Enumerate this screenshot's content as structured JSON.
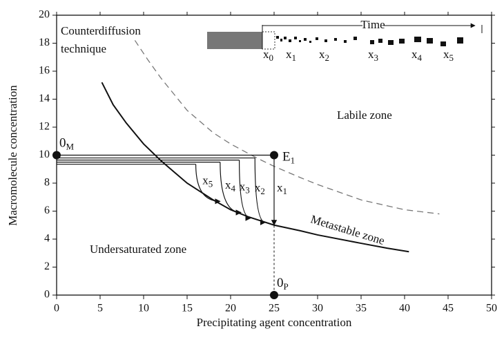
{
  "chart_data": {
    "type": "line",
    "x_label": "Precipitating agent concentration",
    "y_label": "Macromolecule concentration",
    "xlim": [
      0,
      50
    ],
    "xticks": [
      0,
      5,
      10,
      15,
      20,
      25,
      30,
      35,
      40,
      45,
      50
    ],
    "ylim": [
      0,
      20
    ],
    "yticks": [
      0,
      2,
      4,
      6,
      8,
      10,
      12,
      14,
      16,
      18,
      20
    ],
    "series": [
      {
        "style": "solid",
        "color": "#111111",
        "x": [
          5.2,
          6.5,
          8,
          10,
          12,
          15,
          18,
          20,
          22,
          25,
          28,
          30,
          35,
          38,
          40.5
        ],
        "values": [
          15.2,
          13.6,
          12.3,
          10.8,
          9.6,
          8.0,
          6.8,
          6.1,
          5.6,
          5.0,
          4.6,
          4.3,
          3.7,
          3.35,
          3.1
        ]
      },
      {
        "style": "dashed",
        "color": "#777777",
        "x": [
          9,
          10.5,
          12,
          15,
          18,
          20,
          23,
          25,
          28,
          30,
          35,
          40,
          44
        ],
        "values": [
          18.2,
          16.8,
          15.5,
          13.2,
          11.6,
          10.8,
          9.8,
          9.2,
          8.4,
          7.9,
          6.8,
          6.1,
          5.8
        ]
      }
    ],
    "points": [
      {
        "main": "0",
        "sub": "M",
        "x": 0,
        "y": 10
      },
      {
        "main": "E",
        "sub": "1",
        "x": 25,
        "y": 10
      },
      {
        "main": "0",
        "sub": "P",
        "x": 25,
        "y": 0
      }
    ],
    "paths": [
      {
        "main": "x",
        "sub": "1",
        "start": [
          25,
          10
        ],
        "end": [
          25,
          5.0
        ]
      },
      {
        "main": "x",
        "sub": "2",
        "start": [
          22.8,
          9.8
        ],
        "end": [
          24,
          5.2
        ]
      },
      {
        "main": "x",
        "sub": "3",
        "start": [
          21,
          9.65
        ],
        "end": [
          22.3,
          5.5
        ]
      },
      {
        "main": "x",
        "sub": "4",
        "start": [
          18.8,
          9.5
        ],
        "end": [
          21.2,
          5.9
        ]
      },
      {
        "main": "x",
        "sub": "5",
        "start": [
          16,
          9.35
        ],
        "end": [
          18.8,
          6.7
        ]
      }
    ],
    "annotations": [
      "Counterdiffusion",
      "technique",
      "Labile zone",
      "Metastable zone",
      "Undersaturated zone"
    ],
    "time_label": "Time",
    "time_marks": [
      {
        "main": "x",
        "sub": "0"
      },
      {
        "main": "x",
        "sub": "1"
      },
      {
        "main": "x",
        "sub": "2"
      },
      {
        "main": "x",
        "sub": "3"
      },
      {
        "main": "x",
        "sub": "4"
      },
      {
        "main": "x",
        "sub": "5"
      }
    ]
  }
}
